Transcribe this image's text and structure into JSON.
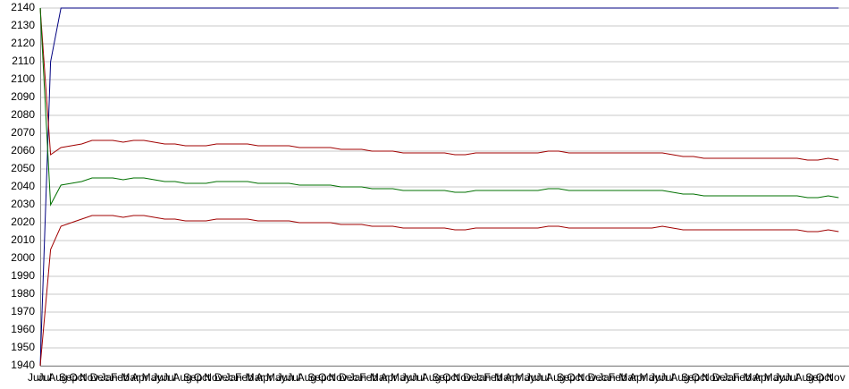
{
  "chart_data": {
    "type": "line",
    "categories": [
      "Jun",
      "Jul",
      "Aug",
      "Sep",
      "Oct",
      "Nov",
      "Dec",
      "Jan",
      "Feb",
      "Mar",
      "Apr",
      "May",
      "Jun",
      "Jul",
      "Aug",
      "Sep",
      "Oct",
      "Nov",
      "Dec",
      "Jan",
      "Feb",
      "Mar",
      "Apr",
      "May",
      "Jun",
      "Jul",
      "Aug",
      "Sep",
      "Oct",
      "Nov",
      "Dec",
      "Jan",
      "Feb",
      "Mar",
      "Apr",
      "May",
      "Jun",
      "Jul",
      "Aug",
      "Sep",
      "Oct",
      "Nov",
      "Dec",
      "Jan",
      "Feb",
      "Mar",
      "Apr",
      "May",
      "Jun",
      "Jul",
      "Aug",
      "Sep",
      "Oct",
      "Nov",
      "Dec",
      "Jan",
      "Feb",
      "Mar",
      "Apr",
      "May",
      "Jun",
      "Jul",
      "Aug",
      "Sep",
      "Oct",
      "Nov",
      "Dec",
      "Jan",
      "Feb",
      "Mar",
      "Apr",
      "May",
      "Jun",
      "Jul",
      "Aug",
      "Sep",
      "Oct",
      "Nov"
    ],
    "series": [
      {
        "color": "#000080",
        "values": [
          1940,
          2110,
          2140,
          2140,
          2140,
          2140,
          2140,
          2140,
          2140,
          2140,
          2140,
          2140,
          2140,
          2140,
          2140,
          2140,
          2140,
          2140,
          2140,
          2140,
          2140,
          2140,
          2140,
          2140,
          2140,
          2140,
          2140,
          2140,
          2140,
          2140,
          2140,
          2140,
          2140,
          2140,
          2140,
          2140,
          2140,
          2140,
          2140,
          2140,
          2140,
          2140,
          2140,
          2140,
          2140,
          2140,
          2140,
          2140,
          2140,
          2140,
          2140,
          2140,
          2140,
          2140,
          2140,
          2140,
          2140,
          2140,
          2140,
          2140,
          2140,
          2140,
          2140,
          2140,
          2140,
          2140,
          2140,
          2140,
          2140,
          2140,
          2140,
          2140,
          2140,
          2140,
          2140,
          2140,
          2140,
          2140
        ]
      },
      {
        "color": "#a00000",
        "values": [
          2140,
          2058,
          2062,
          2063,
          2064,
          2066,
          2066,
          2066,
          2065,
          2066,
          2066,
          2065,
          2064,
          2064,
          2063,
          2063,
          2063,
          2064,
          2064,
          2064,
          2064,
          2063,
          2063,
          2063,
          2063,
          2062,
          2062,
          2062,
          2062,
          2061,
          2061,
          2061,
          2060,
          2060,
          2060,
          2059,
          2059,
          2059,
          2059,
          2059,
          2058,
          2058,
          2059,
          2059,
          2059,
          2059,
          2059,
          2059,
          2059,
          2060,
          2060,
          2059,
          2059,
          2059,
          2059,
          2059,
          2059,
          2059,
          2059,
          2059,
          2059,
          2058,
          2057,
          2057,
          2056,
          2056,
          2056,
          2056,
          2056,
          2056,
          2056,
          2056,
          2056,
          2056,
          2055,
          2055,
          2056,
          2055
        ]
      },
      {
        "color": "#007000",
        "values": [
          2140,
          2030,
          2041,
          2042,
          2043,
          2045,
          2045,
          2045,
          2044,
          2045,
          2045,
          2044,
          2043,
          2043,
          2042,
          2042,
          2042,
          2043,
          2043,
          2043,
          2043,
          2042,
          2042,
          2042,
          2042,
          2041,
          2041,
          2041,
          2041,
          2040,
          2040,
          2040,
          2039,
          2039,
          2039,
          2038,
          2038,
          2038,
          2038,
          2038,
          2037,
          2037,
          2038,
          2038,
          2038,
          2038,
          2038,
          2038,
          2038,
          2039,
          2039,
          2038,
          2038,
          2038,
          2038,
          2038,
          2038,
          2038,
          2038,
          2038,
          2038,
          2037,
          2036,
          2036,
          2035,
          2035,
          2035,
          2035,
          2035,
          2035,
          2035,
          2035,
          2035,
          2035,
          2034,
          2034,
          2035,
          2034
        ]
      },
      {
        "color": "#a00000",
        "values": [
          1940,
          2005,
          2018,
          2020,
          2022,
          2024,
          2024,
          2024,
          2023,
          2024,
          2024,
          2023,
          2022,
          2022,
          2021,
          2021,
          2021,
          2022,
          2022,
          2022,
          2022,
          2021,
          2021,
          2021,
          2021,
          2020,
          2020,
          2020,
          2020,
          2019,
          2019,
          2019,
          2018,
          2018,
          2018,
          2017,
          2017,
          2017,
          2017,
          2017,
          2016,
          2016,
          2017,
          2017,
          2017,
          2017,
          2017,
          2017,
          2017,
          2018,
          2018,
          2017,
          2017,
          2017,
          2017,
          2017,
          2017,
          2017,
          2017,
          2017,
          2018,
          2017,
          2016,
          2016,
          2016,
          2016,
          2016,
          2016,
          2016,
          2016,
          2016,
          2016,
          2016,
          2016,
          2015,
          2015,
          2016,
          2015
        ]
      }
    ],
    "ylim": [
      1940,
      2140
    ],
    "yticks": [
      1940,
      1950,
      1960,
      1970,
      1980,
      1990,
      2000,
      2010,
      2020,
      2030,
      2040,
      2050,
      2060,
      2070,
      2080,
      2090,
      2100,
      2110,
      2120,
      2130,
      2140
    ],
    "grid": true
  }
}
